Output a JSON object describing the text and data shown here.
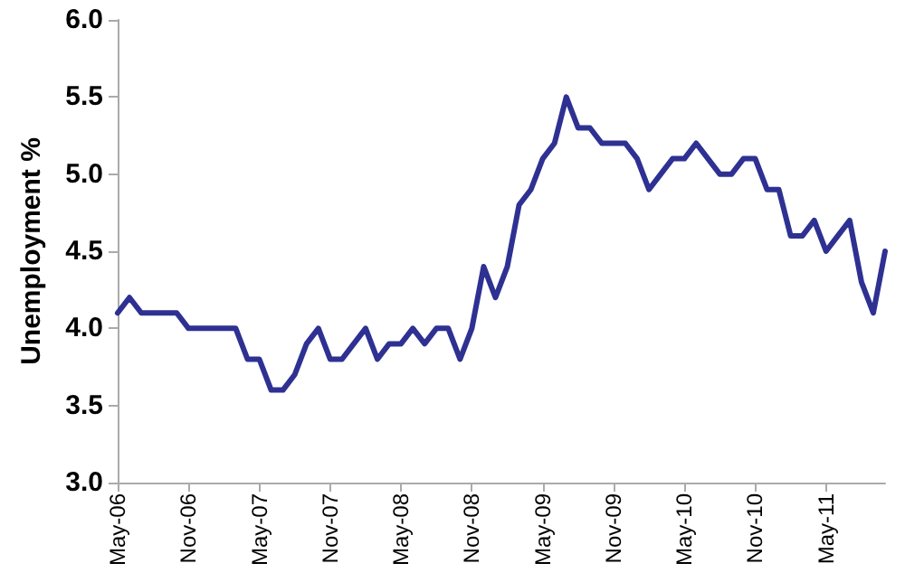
{
  "chart_data": {
    "type": "line",
    "ylabel": "Unemployment %",
    "categories": [
      "May-06",
      null,
      null,
      null,
      null,
      null,
      "Nov-06",
      null,
      null,
      null,
      null,
      null,
      "May-07",
      null,
      null,
      null,
      null,
      null,
      "Nov-07",
      null,
      null,
      null,
      null,
      null,
      "May-08",
      null,
      null,
      null,
      null,
      null,
      "Nov-08",
      null,
      null,
      null,
      null,
      null,
      "May-09",
      null,
      null,
      null,
      null,
      null,
      "Nov-09",
      null,
      null,
      null,
      null,
      null,
      "May-10",
      null,
      null,
      null,
      null,
      null,
      "Nov-10",
      null,
      null,
      null,
      null,
      null,
      "May-11",
      null,
      null,
      null,
      null,
      null
    ],
    "series": [
      {
        "color": "#2e3192",
        "values": [
          4.1,
          4.2,
          4.1,
          4.1,
          4.1,
          4.1,
          4.0,
          4.0,
          4.0,
          4.0,
          4.0,
          3.8,
          3.8,
          3.6,
          3.6,
          3.7,
          3.9,
          4.0,
          3.8,
          3.8,
          3.9,
          4.0,
          3.8,
          3.9,
          3.9,
          4.0,
          3.9,
          4.0,
          4.0,
          3.8,
          4.0,
          4.4,
          4.2,
          4.4,
          4.8,
          4.9,
          5.1,
          5.2,
          5.5,
          5.3,
          5.3,
          5.2,
          5.2,
          5.2,
          5.1,
          4.9,
          5.0,
          5.1,
          5.1,
          5.2,
          5.1,
          5.0,
          5.0,
          5.1,
          5.1,
          4.9,
          4.9,
          4.6,
          4.6,
          4.7,
          4.5,
          4.6,
          4.7,
          4.3,
          4.1,
          4.5
        ]
      }
    ],
    "ylim": [
      3,
      6
    ],
    "yticks": [
      {
        "value": 3,
        "label": "3.0"
      },
      {
        "value": 3.5,
        "label": "3.5"
      },
      {
        "value": 4,
        "label": "4.0"
      },
      {
        "value": 4.5,
        "label": "4.5"
      },
      {
        "value": 5,
        "label": "5.0"
      },
      {
        "value": 5.5,
        "label": "5.5"
      },
      {
        "value": 6,
        "label": "6.0"
      }
    ],
    "grid": false,
    "marker": "none",
    "line_style": "solid"
  }
}
